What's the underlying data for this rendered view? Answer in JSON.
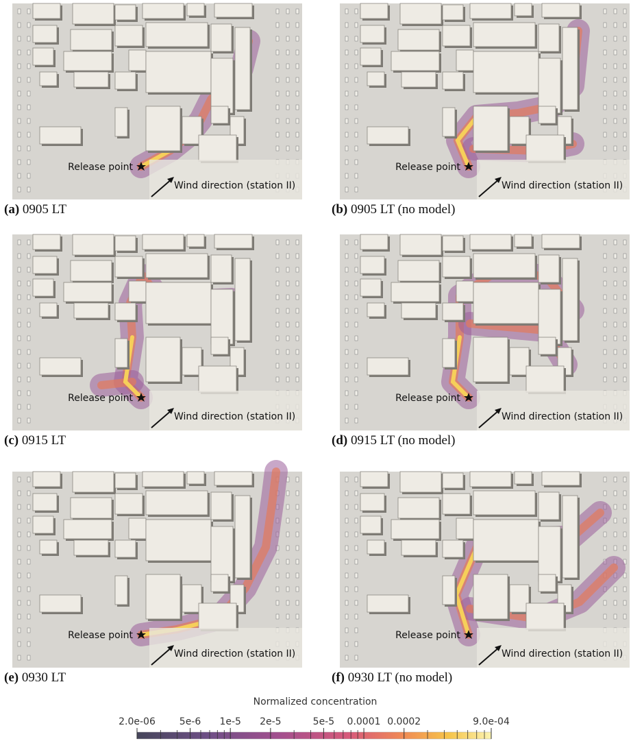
{
  "panels": [
    {
      "letter": "(a)",
      "caption": "0905 LT",
      "release_label": "Release point",
      "wind_label": "Wind direction (station II)"
    },
    {
      "letter": "(b)",
      "caption": "0905 LT (no model)",
      "release_label": "Release point",
      "wind_label": "Wind direction (station II)"
    },
    {
      "letter": "(c)",
      "caption": "0915 LT",
      "release_label": "Release point",
      "wind_label": "Wind direction (station II)"
    },
    {
      "letter": "(d)",
      "caption": "0915 LT (no model)",
      "release_label": "Release point",
      "wind_label": "Wind direction (station II)"
    },
    {
      "letter": "(e)",
      "caption": "0930 LT",
      "release_label": "Release point",
      "wind_label": "Wind direction (station II)"
    },
    {
      "letter": "(f)",
      "caption": "0930 LT (no model)",
      "release_label": "Release point",
      "wind_label": "Wind direction (station II)"
    }
  ],
  "colorbar": {
    "title": "Normalized concentration",
    "scale": "log",
    "lim": [
      2e-06,
      0.0009
    ],
    "ticks": [
      {
        "value": 2e-06,
        "label": "2.0e-06"
      },
      {
        "value": 5e-06,
        "label": "5e-6"
      },
      {
        "value": 1e-05,
        "label": "1e-5"
      },
      {
        "value": 2e-05,
        "label": "2e-5"
      },
      {
        "value": 5e-05,
        "label": "5e-5"
      },
      0.0001,
      0.0002,
      {
        "value": 0.0009,
        "label": "9.0e-04"
      }
    ],
    "minor_ticks": [
      3e-06,
      4e-06,
      6e-06,
      7e-06,
      8e-06,
      9e-06,
      3e-05,
      4e-05,
      6e-05,
      7e-05,
      8e-05,
      9e-05,
      0.0003,
      0.0004,
      0.0005,
      0.0006,
      0.0007,
      0.0008
    ]
  }
}
